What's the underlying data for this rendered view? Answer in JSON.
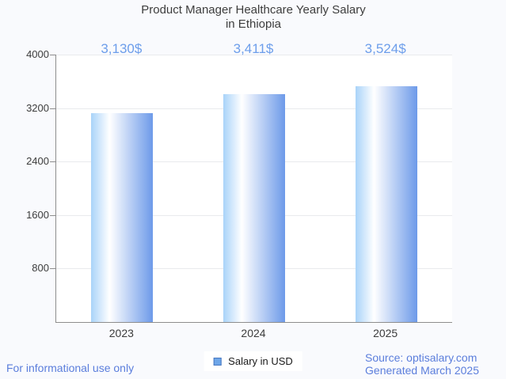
{
  "title": {
    "line1": "Product Manager Healthcare Yearly Salary",
    "line2": "in Ethiopia"
  },
  "chart_data": {
    "type": "bar",
    "title": "Product Manager Healthcare Yearly Salary in Ethiopia",
    "categories": [
      "2023",
      "2024",
      "2025"
    ],
    "series": [
      {
        "name": "Salary in USD",
        "values": [
          3130,
          3411,
          3524
        ]
      }
    ],
    "value_labels": [
      "3,130$",
      "3,411$",
      "3,524$"
    ],
    "xlabel": "",
    "ylabel": "",
    "ylim": [
      0,
      4000
    ],
    "yticks": [
      800,
      1600,
      2400,
      3200,
      4000
    ],
    "grid": true,
    "legend_position": "bottom-center"
  },
  "legend": {
    "label": "Salary in USD"
  },
  "footer": {
    "left": "For informational use only",
    "source": "Source: optisalary.com",
    "generated": "Generated March 2025"
  },
  "colors": {
    "page_background": "#f9fafd",
    "plot_background": "#ffffff",
    "bar_gradient_left": "#a9d3f9",
    "bar_gradient_mid": "#ffffff",
    "bar_gradient_right": "#6d9ae9",
    "value_label_blue": "#6d9eeb",
    "footer_blue": "#5b7edc",
    "axis_line": "#8d8d8d",
    "gridline": "#e9eaed",
    "text_dark": "#3c3c3c",
    "legend_swatch_fill": "#6ea6e8",
    "legend_swatch_border": "#4979c1"
  }
}
